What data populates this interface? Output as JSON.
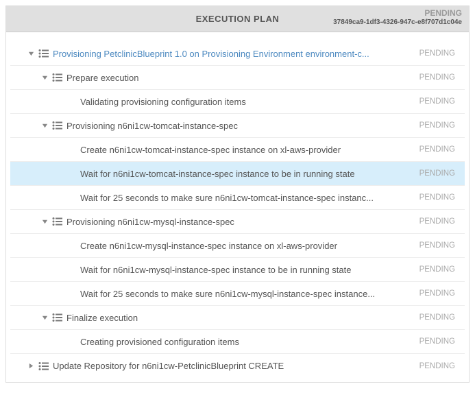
{
  "header": {
    "title": "EXECUTION PLAN",
    "status": "PENDING",
    "id": "37849ca9-1df3-4326-947c-e8f707d1c04e"
  },
  "colors": {
    "chevron": "#888888",
    "listIcon": "#777777",
    "link": "#4c89c0",
    "highlight": "#d7eefb"
  },
  "tree": [
    {
      "indent": 0,
      "expandable": true,
      "expanded": true,
      "icon": true,
      "link": true,
      "highlight": false,
      "label": "Provisioning PetclinicBlueprint 1.0 on Provisioning Environment environment-c...",
      "status": "PENDING"
    },
    {
      "indent": 1,
      "expandable": true,
      "expanded": true,
      "icon": true,
      "link": false,
      "highlight": false,
      "label": "Prepare execution",
      "status": "PENDING"
    },
    {
      "indent": 2,
      "expandable": false,
      "expanded": false,
      "icon": false,
      "link": false,
      "highlight": false,
      "label": "Validating provisioning configuration items",
      "status": "PENDING"
    },
    {
      "indent": 1,
      "expandable": true,
      "expanded": true,
      "icon": true,
      "link": false,
      "highlight": false,
      "label": "Provisioning n6ni1cw-tomcat-instance-spec",
      "status": "PENDING"
    },
    {
      "indent": 2,
      "expandable": false,
      "expanded": false,
      "icon": false,
      "link": false,
      "highlight": false,
      "label": "Create n6ni1cw-tomcat-instance-spec instance on xl-aws-provider",
      "status": "PENDING"
    },
    {
      "indent": 2,
      "expandable": false,
      "expanded": false,
      "icon": false,
      "link": false,
      "highlight": true,
      "label": "Wait for n6ni1cw-tomcat-instance-spec instance to be in running state",
      "status": "PENDING"
    },
    {
      "indent": 2,
      "expandable": false,
      "expanded": false,
      "icon": false,
      "link": false,
      "highlight": false,
      "label": "Wait for 25 seconds to make sure n6ni1cw-tomcat-instance-spec instanc...",
      "status": "PENDING"
    },
    {
      "indent": 1,
      "expandable": true,
      "expanded": true,
      "icon": true,
      "link": false,
      "highlight": false,
      "label": "Provisioning n6ni1cw-mysql-instance-spec",
      "status": "PENDING"
    },
    {
      "indent": 2,
      "expandable": false,
      "expanded": false,
      "icon": false,
      "link": false,
      "highlight": false,
      "label": "Create n6ni1cw-mysql-instance-spec instance on xl-aws-provider",
      "status": "PENDING"
    },
    {
      "indent": 2,
      "expandable": false,
      "expanded": false,
      "icon": false,
      "link": false,
      "highlight": false,
      "label": "Wait for n6ni1cw-mysql-instance-spec instance to be in running state",
      "status": "PENDING"
    },
    {
      "indent": 2,
      "expandable": false,
      "expanded": false,
      "icon": false,
      "link": false,
      "highlight": false,
      "label": "Wait for 25 seconds to make sure n6ni1cw-mysql-instance-spec instance...",
      "status": "PENDING"
    },
    {
      "indent": 1,
      "expandable": true,
      "expanded": true,
      "icon": true,
      "link": false,
      "highlight": false,
      "label": "Finalize execution",
      "status": "PENDING"
    },
    {
      "indent": 2,
      "expandable": false,
      "expanded": false,
      "icon": false,
      "link": false,
      "highlight": false,
      "label": "Creating provisioned configuration items",
      "status": "PENDING"
    },
    {
      "indent": 0,
      "expandable": true,
      "expanded": false,
      "icon": true,
      "link": false,
      "highlight": false,
      "label": "Update Repository for n6ni1cw-PetclinicBlueprint CREATE",
      "status": "PENDING"
    }
  ]
}
